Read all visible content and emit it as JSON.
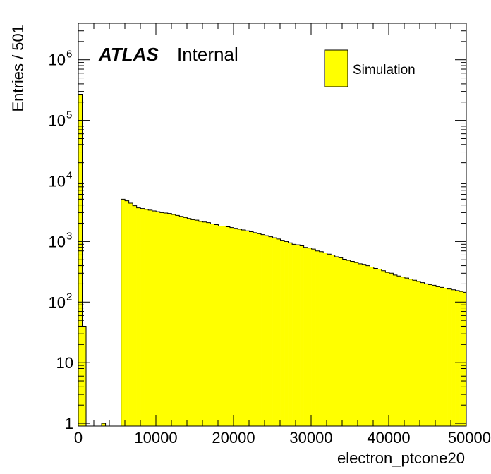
{
  "chart_data": {
    "type": "bar",
    "title": "",
    "xlabel": "electron_ptcone20",
    "ylabel": "Entries / 501",
    "log_y": true,
    "xlim": [
      0,
      50000
    ],
    "ylim": [
      0.9,
      4000000
    ],
    "bin_width": 501,
    "x_ticks": [
      0,
      10000,
      20000,
      30000,
      40000,
      50000
    ],
    "x_tick_labels": [
      "0",
      "10000",
      "20000",
      "30000",
      "40000",
      "50000"
    ],
    "y_ticks": [
      {
        "value": 1,
        "base": "1",
        "exp": ""
      },
      {
        "value": 10,
        "base": "10",
        "exp": ""
      },
      {
        "value": 100,
        "base": "10",
        "exp": "2"
      },
      {
        "value": 1000,
        "base": "10",
        "exp": "3"
      },
      {
        "value": 10000,
        "base": "10",
        "exp": "4"
      },
      {
        "value": 100000,
        "base": "10",
        "exp": "5"
      },
      {
        "value": 1000000,
        "base": "10",
        "exp": "6"
      }
    ],
    "annotation": {
      "bold": "ATLAS",
      "normal": "Internal"
    },
    "fill_color": "#ffff00",
    "line_color": "#000000",
    "grid": false,
    "legend_position": "top-right",
    "series": [
      {
        "name": "Simulation",
        "values": [
          270000,
          40,
          0,
          0,
          0,
          0.5,
          1,
          0,
          0,
          0,
          0,
          5000,
          4700,
          4300,
          3900,
          3600,
          3500,
          3400,
          3300,
          3200,
          3100,
          3000,
          2950,
          2900,
          2800,
          2700,
          2600,
          2500,
          2400,
          2300,
          2250,
          2150,
          2100,
          2050,
          1950,
          1900,
          1800,
          1800,
          1750,
          1700,
          1650,
          1600,
          1550,
          1500,
          1450,
          1400,
          1350,
          1300,
          1250,
          1200,
          1150,
          1100,
          1050,
          1000,
          950,
          900,
          880,
          850,
          800,
          780,
          750,
          700,
          680,
          650,
          620,
          600,
          560,
          540,
          510,
          490,
          470,
          450,
          430,
          420,
          400,
          380,
          360,
          350,
          330,
          310,
          300,
          280,
          270,
          260,
          250,
          240,
          230,
          220,
          210,
          200,
          195,
          190,
          180,
          175,
          170,
          165,
          160,
          155,
          150,
          145,
          140
        ]
      }
    ]
  }
}
